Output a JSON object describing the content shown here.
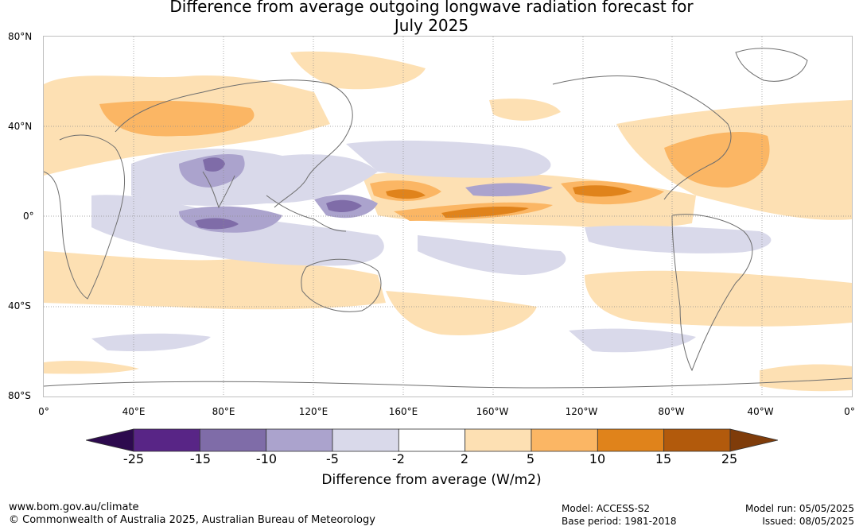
{
  "title": "Difference from average outgoing longwave radiation forecast for\nJuly 2025",
  "map": {
    "lat_labels": [
      "80°N",
      "40°N",
      "0°",
      "40°S",
      "80°S"
    ],
    "lon_labels": [
      "0°",
      "40°E",
      "80°E",
      "120°E",
      "160°E",
      "160°W",
      "120°W",
      "80°W",
      "40°W",
      "0°"
    ]
  },
  "colorbar": {
    "label": "Difference from average (W/m2)",
    "ticks": [
      "-25",
      "-15",
      "-10",
      "-5",
      "-2",
      "2",
      "5",
      "10",
      "15",
      "25"
    ],
    "colors": [
      "#2d0a4e",
      "#582586",
      "#7f6ca8",
      "#aba3cd",
      "#d9d9ea",
      "#ffffff",
      "#fde0b3",
      "#fbb664",
      "#e0831b",
      "#b25a0c",
      "#7f3c0a"
    ]
  },
  "footer": {
    "left": [
      "www.bom.gov.au/climate",
      "© Commonwealth of Australia 2025, Australian Bureau of Meteorology"
    ],
    "mid": [
      "Model: ACCESS-S2",
      "Base period: 1981-2018"
    ],
    "right": [
      "Model run: 05/05/2025",
      "Issued: 08/05/2025"
    ]
  }
}
